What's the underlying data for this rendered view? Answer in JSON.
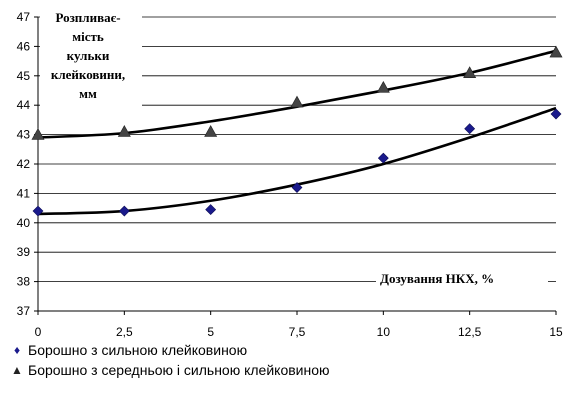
{
  "chart_data": {
    "type": "line",
    "x": [
      0,
      2.5,
      5,
      7.5,
      10,
      12.5,
      15
    ],
    "x_tick_labels": [
      "0",
      "2,5",
      "5",
      "7,5",
      "10",
      "12,5",
      "15"
    ],
    "ylim": [
      37,
      47
    ],
    "y_ticks": [
      37,
      38,
      39,
      40,
      41,
      42,
      43,
      44,
      45,
      46,
      47
    ],
    "ylabel_lines": [
      "Розпливає-",
      "мість",
      "кульки",
      "клейковини,",
      "мм"
    ],
    "xlabel": "Дозування НКХ, %",
    "grid": "horizontal",
    "series": [
      {
        "name": "Борошно з сильною клейковиною",
        "marker": "diamond",
        "color": "#1a1a8c",
        "points": [
          40.4,
          40.4,
          40.45,
          41.2,
          42.2,
          43.2,
          43.7
        ],
        "trend": [
          40.3,
          40.4,
          40.75,
          41.3,
          42.0,
          42.9,
          43.9
        ]
      },
      {
        "name": "Борошно з середньою і сильною клейковиною",
        "marker": "triangle",
        "color": "#444444",
        "points": [
          43.0,
          43.1,
          43.1,
          44.1,
          44.6,
          45.1,
          45.8
        ],
        "trend": [
          42.9,
          43.05,
          43.45,
          43.95,
          44.5,
          45.1,
          45.85
        ]
      }
    ],
    "legend": [
      {
        "symbol": "♦",
        "label": "Борошно з сильною клейковиною"
      },
      {
        "symbol": "▲",
        "label": "Борошно з середньою і сильною клейковиною"
      }
    ]
  }
}
